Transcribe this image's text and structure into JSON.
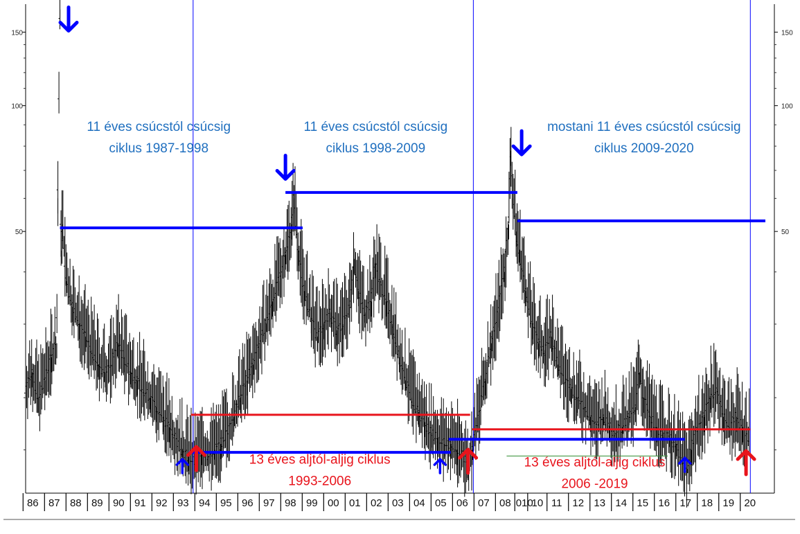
{
  "chart_data": {
    "type": "line",
    "title": "",
    "xlabel": "",
    "ylabel": "",
    "y_scale": "log",
    "ylim": [
      12,
      175
    ],
    "xlim": [
      1986.0,
      2020.45
    ],
    "grid": false,
    "y_ticks": [
      {
        "value": 150,
        "label": "150"
      },
      {
        "value": 100,
        "label": "100"
      },
      {
        "value": 50,
        "label": "50"
      }
    ],
    "x_ticks": [
      {
        "value": 1986.3,
        "label": "86"
      },
      {
        "value": 1987.3,
        "label": "87"
      },
      {
        "value": 1988.3,
        "label": "88"
      },
      {
        "value": 1989.3,
        "label": "89"
      },
      {
        "value": 1990.3,
        "label": "90"
      },
      {
        "value": 1991.3,
        "label": "91"
      },
      {
        "value": 1992.3,
        "label": "92"
      },
      {
        "value": 1993.3,
        "label": "93"
      },
      {
        "value": 1994.3,
        "label": "94"
      },
      {
        "value": 1995.3,
        "label": "95"
      },
      {
        "value": 1996.3,
        "label": "96"
      },
      {
        "value": 1997.3,
        "label": "97"
      },
      {
        "value": 1998.3,
        "label": "98"
      },
      {
        "value": 1999.3,
        "label": "99"
      },
      {
        "value": 2000.3,
        "label": "00"
      },
      {
        "value": 2001.3,
        "label": "01"
      },
      {
        "value": 2002.3,
        "label": "02"
      },
      {
        "value": 2003.3,
        "label": "03"
      },
      {
        "value": 2004.3,
        "label": "04"
      },
      {
        "value": 2005.3,
        "label": "05"
      },
      {
        "value": 2006.3,
        "label": "06"
      },
      {
        "value": 2007.3,
        "label": "07"
      },
      {
        "value": 2008.3,
        "label": "08"
      },
      {
        "value": 2009.2,
        "label": "010"
      },
      {
        "value": 2009.8,
        "label": "10"
      },
      {
        "value": 2010.7,
        "label": "11"
      },
      {
        "value": 2011.7,
        "label": "12"
      },
      {
        "value": 2012.7,
        "label": "13"
      },
      {
        "value": 2013.7,
        "label": "14"
      },
      {
        "value": 2014.7,
        "label": "15"
      },
      {
        "value": 2015.7,
        "label": "16"
      },
      {
        "value": 2016.7,
        "label": "17"
      },
      {
        "value": 2017.7,
        "label": "18"
      },
      {
        "value": 2018.7,
        "label": "19"
      },
      {
        "value": 2019.7,
        "label": "20"
      }
    ],
    "series": [
      {
        "color": "#000000",
        "points": [
          [
            1986.0,
            21
          ],
          [
            1986.3,
            23
          ],
          [
            1986.6,
            20
          ],
          [
            1986.9,
            22
          ],
          [
            1987.2,
            25
          ],
          [
            1987.45,
            27
          ],
          [
            1987.5,
            60
          ],
          [
            1987.6,
            170
          ],
          [
            1987.65,
            45
          ],
          [
            1987.7,
            52
          ],
          [
            1987.9,
            38
          ],
          [
            1988.2,
            33
          ],
          [
            1988.5,
            30
          ],
          [
            1988.8,
            28
          ],
          [
            1989.1,
            26
          ],
          [
            1989.4,
            24
          ],
          [
            1989.7,
            23
          ],
          [
            1990.0,
            24
          ],
          [
            1990.3,
            27
          ],
          [
            1990.6,
            25
          ],
          [
            1990.9,
            23
          ],
          [
            1991.2,
            22
          ],
          [
            1991.5,
            21
          ],
          [
            1991.8,
            20
          ],
          [
            1992.1,
            19
          ],
          [
            1992.4,
            18
          ],
          [
            1992.7,
            17
          ],
          [
            1993.0,
            16
          ],
          [
            1993.3,
            15
          ],
          [
            1993.6,
            14.5
          ],
          [
            1993.9,
            14
          ],
          [
            1994.2,
            15
          ],
          [
            1994.5,
            14.5
          ],
          [
            1994.8,
            15
          ],
          [
            1995.1,
            15.5
          ],
          [
            1995.4,
            16.5
          ],
          [
            1995.7,
            18
          ],
          [
            1996.0,
            20
          ],
          [
            1996.3,
            22
          ],
          [
            1996.6,
            24
          ],
          [
            1996.9,
            27
          ],
          [
            1997.2,
            30
          ],
          [
            1997.5,
            34
          ],
          [
            1997.8,
            38
          ],
          [
            1998.1,
            44
          ],
          [
            1998.4,
            52
          ],
          [
            1998.5,
            60
          ],
          [
            1998.7,
            45
          ],
          [
            1999.0,
            36
          ],
          [
            1999.3,
            31
          ],
          [
            1999.6,
            28
          ],
          [
            1999.9,
            30
          ],
          [
            2000.2,
            32
          ],
          [
            2000.5,
            29
          ],
          [
            2000.8,
            30
          ],
          [
            2001.1,
            33
          ],
          [
            2001.3,
            43
          ],
          [
            2001.5,
            36
          ],
          [
            2001.8,
            32
          ],
          [
            2002.1,
            34
          ],
          [
            2002.3,
            42
          ],
          [
            2002.5,
            38
          ],
          [
            2002.8,
            34
          ],
          [
            2003.1,
            30
          ],
          [
            2003.4,
            25
          ],
          [
            2003.7,
            22
          ],
          [
            2004.0,
            20
          ],
          [
            2004.3,
            18.5
          ],
          [
            2004.6,
            17.5
          ],
          [
            2004.9,
            16.5
          ],
          [
            2005.2,
            16
          ],
          [
            2005.5,
            15.5
          ],
          [
            2005.8,
            15.5
          ],
          [
            2006.1,
            15
          ],
          [
            2006.4,
            14.5
          ],
          [
            2006.6,
            13.8
          ],
          [
            2006.8,
            15
          ],
          [
            2007.1,
            18
          ],
          [
            2007.4,
            22
          ],
          [
            2007.7,
            27
          ],
          [
            2008.0,
            32
          ],
          [
            2008.3,
            40
          ],
          [
            2008.5,
            52
          ],
          [
            2008.6,
            78
          ],
          [
            2008.7,
            60
          ],
          [
            2008.85,
            50
          ],
          [
            2009.0,
            45
          ],
          [
            2009.3,
            36
          ],
          [
            2009.6,
            30
          ],
          [
            2009.9,
            27
          ],
          [
            2010.2,
            26
          ],
          [
            2010.5,
            28
          ],
          [
            2010.8,
            24
          ],
          [
            2011.1,
            22
          ],
          [
            2011.4,
            21
          ],
          [
            2011.7,
            20
          ],
          [
            2012.0,
            19
          ],
          [
            2012.3,
            18
          ],
          [
            2012.6,
            17
          ],
          [
            2012.9,
            18
          ],
          [
            2013.2,
            17
          ],
          [
            2013.5,
            16.5
          ],
          [
            2013.8,
            17
          ],
          [
            2014.1,
            18
          ],
          [
            2014.4,
            19
          ],
          [
            2014.6,
            23
          ],
          [
            2014.8,
            20
          ],
          [
            2015.1,
            18
          ],
          [
            2015.4,
            17
          ],
          [
            2015.7,
            16.5
          ],
          [
            2016.0,
            16
          ],
          [
            2016.3,
            15.5
          ],
          [
            2016.6,
            14
          ],
          [
            2016.8,
            13.5
          ],
          [
            2017.0,
            15
          ],
          [
            2017.3,
            17
          ],
          [
            2017.6,
            18
          ],
          [
            2017.9,
            20
          ],
          [
            2018.2,
            21
          ],
          [
            2018.5,
            18
          ],
          [
            2018.8,
            17
          ],
          [
            2019.1,
            18
          ],
          [
            2019.4,
            17
          ],
          [
            2019.7,
            16
          ]
        ]
      }
    ],
    "vertical_lines": [
      {
        "x": 1993.8,
        "color": "#0000ff"
      },
      {
        "x": 2006.85,
        "color": "#0000ff"
      },
      {
        "x": 2019.75,
        "color": "#0000ff"
      }
    ],
    "level_lines": [
      {
        "x1": 1987.6,
        "x2": 1998.9,
        "y": 51,
        "color": "#0000ff",
        "width": 4
      },
      {
        "x1": 1998.1,
        "x2": 2008.9,
        "y": 62,
        "color": "#0000ff",
        "width": 4
      },
      {
        "x1": 2008.9,
        "x2": 2020.45,
        "y": 53,
        "color": "#0000ff",
        "width": 4
      },
      {
        "x1": 1993.6,
        "x2": 2005.8,
        "y": 14.8,
        "color": "#0000ff",
        "width": 4
      },
      {
        "x1": 2005.7,
        "x2": 2016.7,
        "y": 15.9,
        "color": "#0000ff",
        "width": 4
      },
      {
        "x1": 1993.7,
        "x2": 2006.7,
        "y": 18.2,
        "color": "#e8141c",
        "width": 3
      },
      {
        "x1": 2006.8,
        "x2": 2019.75,
        "y": 16.8,
        "color": "#e8141c",
        "width": 3
      },
      {
        "x1": 2008.4,
        "x2": 2015.9,
        "y": 14.5,
        "color": "#2e8b2e",
        "width": 1
      }
    ],
    "arrows": [
      {
        "x": 1988.0,
        "y": 172,
        "dir": "down",
        "color": "#0000ff",
        "size": "large"
      },
      {
        "x": 1998.1,
        "y": 76,
        "dir": "down",
        "color": "#0000ff",
        "size": "large"
      },
      {
        "x": 2009.1,
        "y": 87,
        "dir": "down",
        "color": "#0000ff",
        "size": "large"
      },
      {
        "x": 1993.3,
        "y": 13.2,
        "dir": "up",
        "color": "#0000ff",
        "size": "small"
      },
      {
        "x": 2005.3,
        "y": 13.2,
        "dir": "up",
        "color": "#0000ff",
        "size": "small"
      },
      {
        "x": 2016.7,
        "y": 13.3,
        "dir": "up",
        "color": "#0000ff",
        "size": "small"
      },
      {
        "x": 1993.95,
        "y": 13.4,
        "dir": "up",
        "color": "#e8141c",
        "size": "large"
      },
      {
        "x": 2006.6,
        "y": 13.2,
        "dir": "up",
        "color": "#e8141c",
        "size": "large"
      },
      {
        "x": 2019.55,
        "y": 13.1,
        "dir": "up",
        "color": "#e8141c",
        "size": "large"
      }
    ],
    "annotations": [
      {
        "lines": [
          "11 éves csúcstól csúcsig",
          "ciklus 1987-1998"
        ],
        "x": 1992.2,
        "y": 87,
        "color": "#1f6fbf"
      },
      {
        "lines": [
          "11 éves csúcstól csúcsig",
          "ciklus 1998-2009"
        ],
        "x": 2002.3,
        "y": 87,
        "color": "#1f6fbf"
      },
      {
        "lines": [
          "mostani 11 éves csúcstól csúcsig",
          "ciklus 2009-2020"
        ],
        "x": 2014.8,
        "y": 87,
        "color": "#1f6fbf"
      },
      {
        "lines": [
          "13 éves aljtól-aljig ciklus",
          "1993-2006"
        ],
        "x": 1999.7,
        "y": 13.9,
        "color": "#e8141c"
      },
      {
        "lines": [
          "13 éves aljtól-aljig ciklus",
          "2006 -2019"
        ],
        "x": 2012.5,
        "y": 13.7,
        "color": "#e8141c"
      }
    ]
  }
}
